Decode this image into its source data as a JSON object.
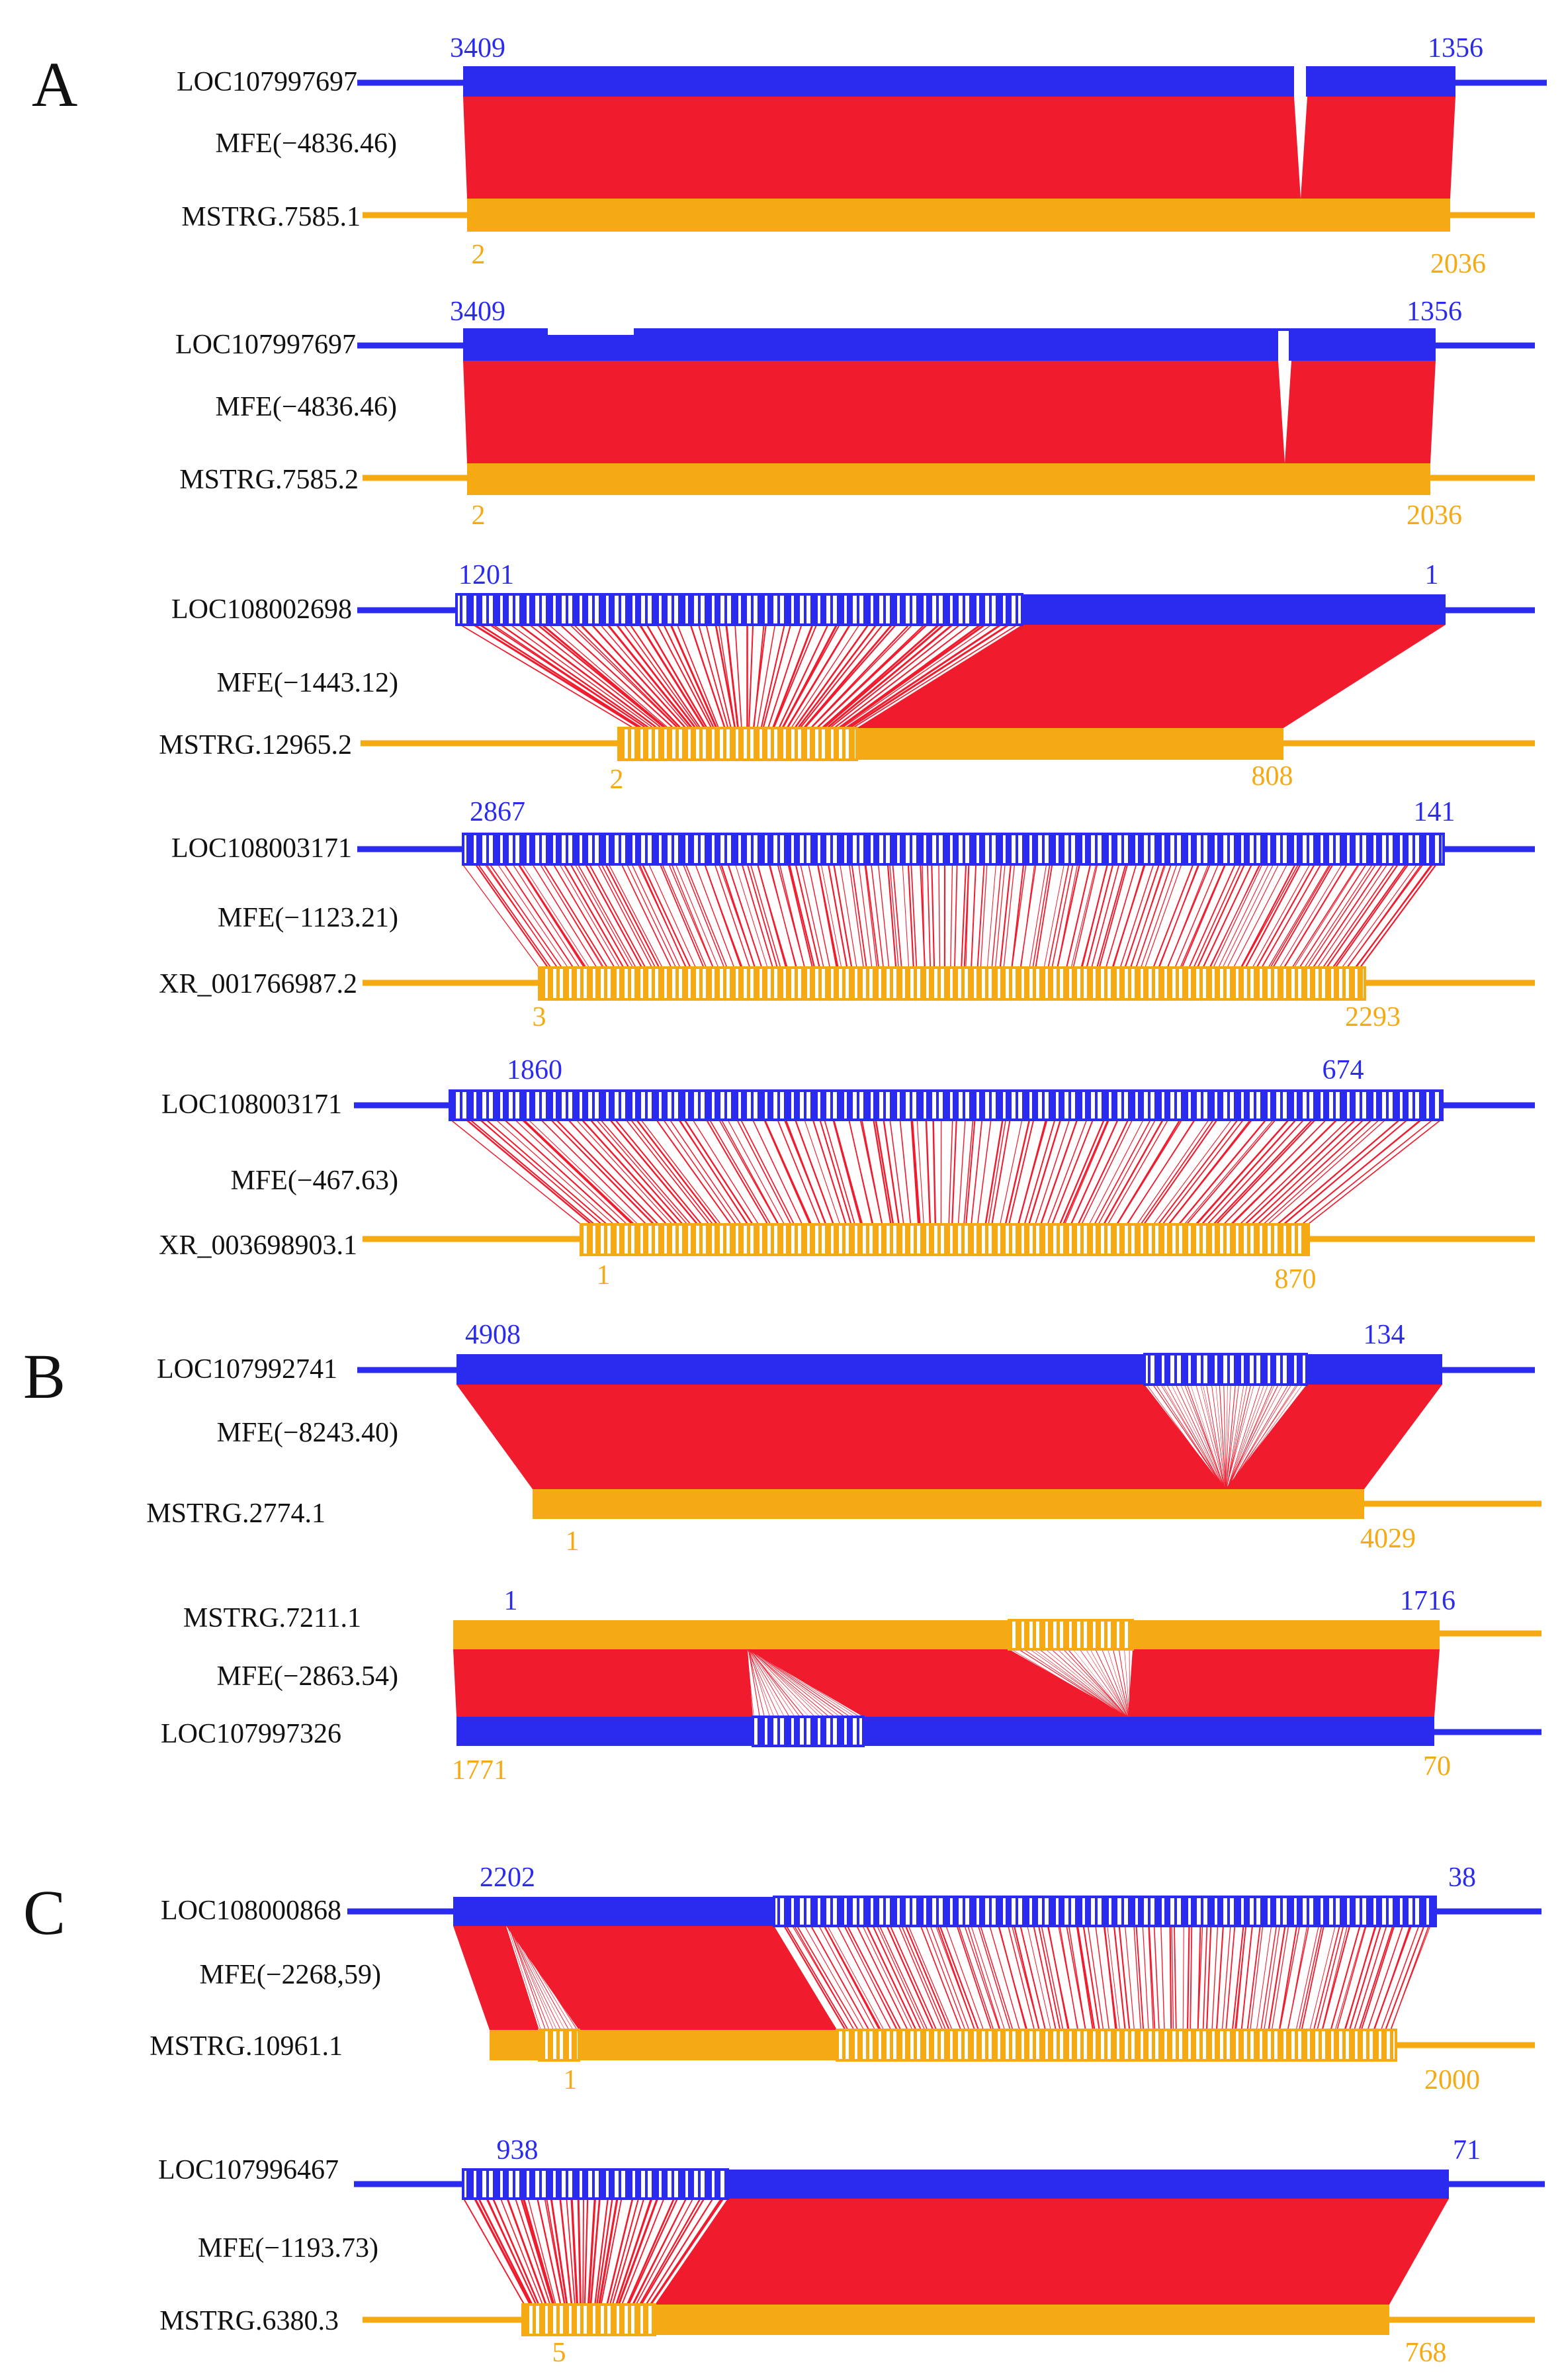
{
  "colors": {
    "blue": "#2b2bf0",
    "orange": "#f5aa14",
    "red": "#f01c2e",
    "bg": "#ffffff"
  },
  "panels": [
    {
      "label": "A"
    },
    {
      "label": "B"
    },
    {
      "label": "C"
    }
  ],
  "pairs": [
    {
      "id": "A1",
      "panel": "A",
      "top": "blue",
      "top_name": "LOC107997697",
      "top_start": "3409",
      "top_end": "1356",
      "mfe": "MFE(−4836.46)",
      "bottom_name": "MSTRG.7585.1",
      "bottom_start": "2",
      "bottom_end": "2036",
      "style": "solid"
    },
    {
      "id": "A2",
      "panel": "A",
      "top": "blue",
      "top_name": "LOC107997697",
      "top_start": "3409",
      "top_end": "1356",
      "mfe": "MFE(−4836.46)",
      "bottom_name": "MSTRG.7585.2",
      "bottom_start": "2",
      "bottom_end": "2036",
      "style": "solid"
    },
    {
      "id": "A3",
      "panel": "A",
      "top": "blue",
      "top_name": "LOC108002698",
      "top_start": "1201",
      "top_end": "1",
      "mfe": "MFE(−1443.12)",
      "bottom_name": "MSTRG.12965.2",
      "bottom_start": "2",
      "bottom_end": "808",
      "style": "mixed"
    },
    {
      "id": "A4",
      "panel": "A",
      "top": "blue",
      "top_name": "LOC108003171",
      "top_start": "2867",
      "top_end": "141",
      "mfe": "MFE(−1123.21)",
      "bottom_name": "XR_001766987.2",
      "bottom_start": "3",
      "bottom_end": "2293",
      "style": "striped"
    },
    {
      "id": "A5",
      "panel": "A",
      "top": "blue",
      "top_name": "LOC108003171",
      "top_start": "1860",
      "top_end": "674",
      "mfe": "MFE(−467.63)",
      "bottom_name": "XR_003698903.1",
      "bottom_start": "1",
      "bottom_end": "870",
      "style": "striped"
    },
    {
      "id": "B1",
      "panel": "B",
      "top": "blue",
      "top_name": "LOC107992741",
      "top_start": "4908",
      "top_end": "134",
      "mfe": "MFE(−8243.40)",
      "bottom_name": "MSTRG.2774.1",
      "bottom_start": "1",
      "bottom_end": "4029",
      "style": "solid"
    },
    {
      "id": "B2",
      "panel": "B",
      "top": "orange",
      "top_name": "MSTRG.7211.1",
      "top_start": "1",
      "top_end": "1716",
      "mfe": "MFE(−2863.54)",
      "bottom_name": "LOC107997326",
      "bottom_start": "1771",
      "bottom_end": "70",
      "style": "solid"
    },
    {
      "id": "C1",
      "panel": "C",
      "top": "blue",
      "top_name": "LOC108000868",
      "top_start": "2202",
      "top_end": "38",
      "mfe": "MFE(−2268,59)",
      "bottom_name": "MSTRG.10961.1",
      "bottom_start": "1",
      "bottom_end": "2000",
      "style": "mixed"
    },
    {
      "id": "C2",
      "panel": "C",
      "top": "blue",
      "top_name": "LOC107996467",
      "top_start": "938",
      "top_end": "71",
      "mfe": "MFE(−1193.73)",
      "bottom_name": "MSTRG.6380.3",
      "bottom_start": "5",
      "bottom_end": "768",
      "style": "mixed"
    }
  ]
}
